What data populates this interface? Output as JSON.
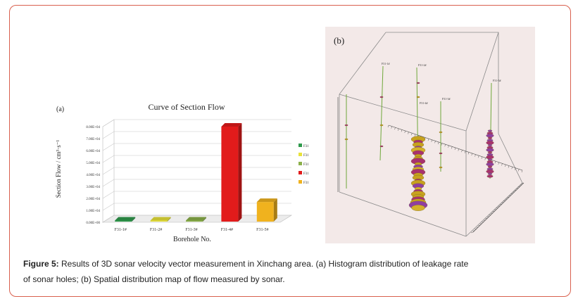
{
  "caption": {
    "label": "Figure 5:",
    "text": "Results of 3D sonar velocity vector measurement in Xinchang area. (a) Histogram distribution of leakage rate of sonar holes; (b) Spatial distribution map of flow measured by sonar."
  },
  "chart_data": [
    {
      "type": "bar",
      "panel_label": "(a)",
      "title": "Curve of  Section Flow",
      "xlabel": "Borehole No.",
      "ylabel": "Section Flow / cm³·s⁻¹",
      "categories": [
        "F31-1#",
        "F31-2#",
        "F31-3#",
        "F31-4#",
        "F31-5#"
      ],
      "values": [
        1500,
        1500,
        1500,
        80000,
        17000
      ],
      "colors": [
        "#2f9a4c",
        "#e8e23a",
        "#8bb04a",
        "#e21b1b",
        "#f0b21e"
      ],
      "ylim": [
        0,
        80000
      ],
      "yticks": [
        "0.00E+00",
        "1.00E+04",
        "2.00E+04",
        "3.00E+04",
        "4.00E+04",
        "5.00E+04",
        "6.00E+04",
        "7.00E+04",
        "8.00E+04"
      ],
      "legend_position": "right",
      "grid": true
    },
    {
      "type": "other",
      "panel_label": "(b)",
      "boreholes": [
        "F31-1#",
        "F31-2#",
        "F31-3#",
        "F31-4#",
        "F31-5#"
      ]
    }
  ]
}
